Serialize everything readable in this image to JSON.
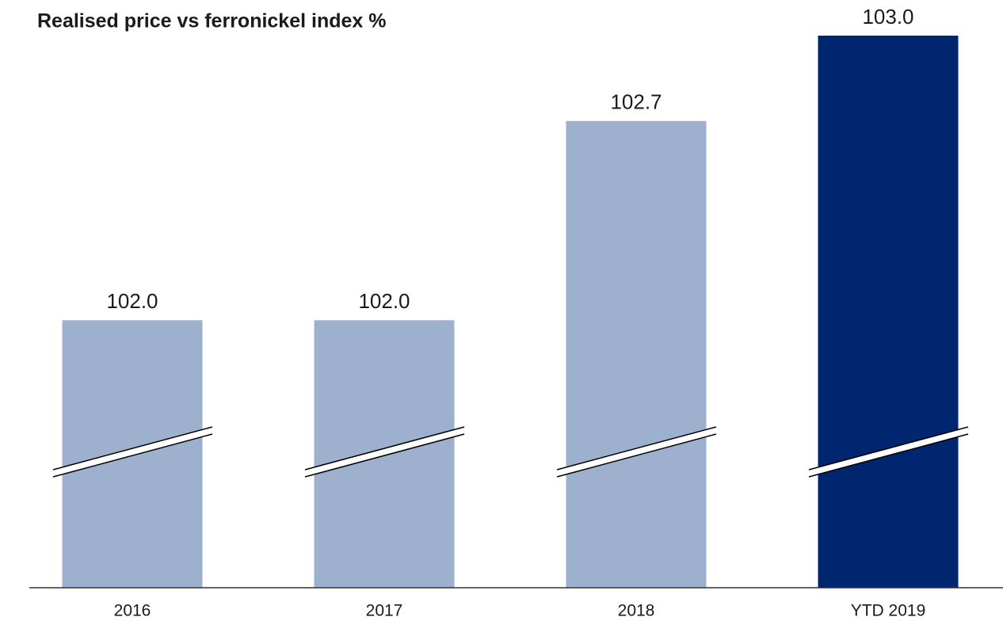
{
  "chart_data": {
    "type": "bar",
    "title": "Realised price vs ferronickel index %",
    "categories": [
      "2016",
      "2017",
      "2018",
      "YTD 2019"
    ],
    "values": [
      102.0,
      102.0,
      102.7,
      103.0
    ],
    "value_labels": [
      "102.0",
      "102.0",
      "102.7",
      "103.0"
    ],
    "colors": [
      "#9db0cd",
      "#9db0cd",
      "#9db0cd",
      "#00266f"
    ],
    "ylim": [
      101.06,
      103.0
    ]
  }
}
